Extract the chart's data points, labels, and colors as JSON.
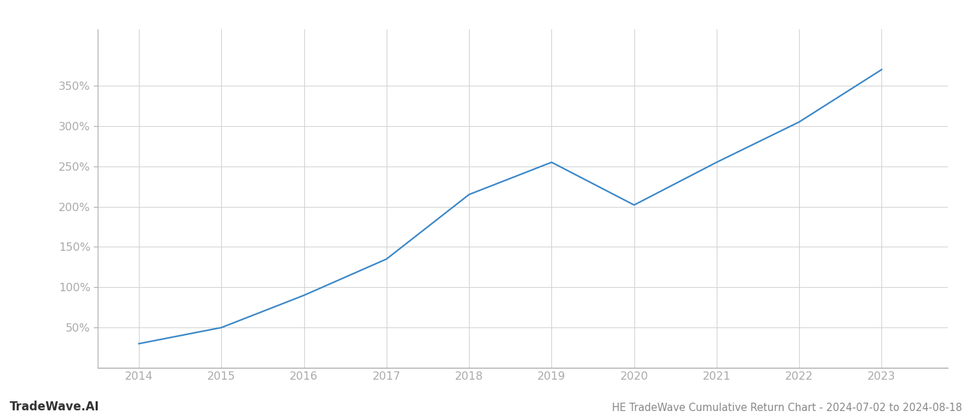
{
  "x_years": [
    2014,
    2015,
    2016,
    2017,
    2018,
    2019,
    2020,
    2021,
    2022,
    2023
  ],
  "y_values": [
    30,
    50,
    90,
    135,
    215,
    255,
    202,
    255,
    305,
    370
  ],
  "line_color": "#3a87c8",
  "line_width": 1.6,
  "background_color": "#ffffff",
  "grid_color": "#d0d0d0",
  "title": "HE TradeWave Cumulative Return Chart - 2024-07-02 to 2024-08-18",
  "watermark": "TradeWave.AI",
  "ylim": [
    0,
    420
  ],
  "yticks": [
    50,
    100,
    150,
    200,
    250,
    300,
    350
  ],
  "xlim": [
    2013.5,
    2023.8
  ],
  "tick_color": "#aaaaaa",
  "spine_color": "#aaaaaa",
  "title_color": "#888888",
  "watermark_color": "#333333",
  "title_fontsize": 10.5,
  "watermark_fontsize": 12,
  "tick_fontsize": 11.5
}
